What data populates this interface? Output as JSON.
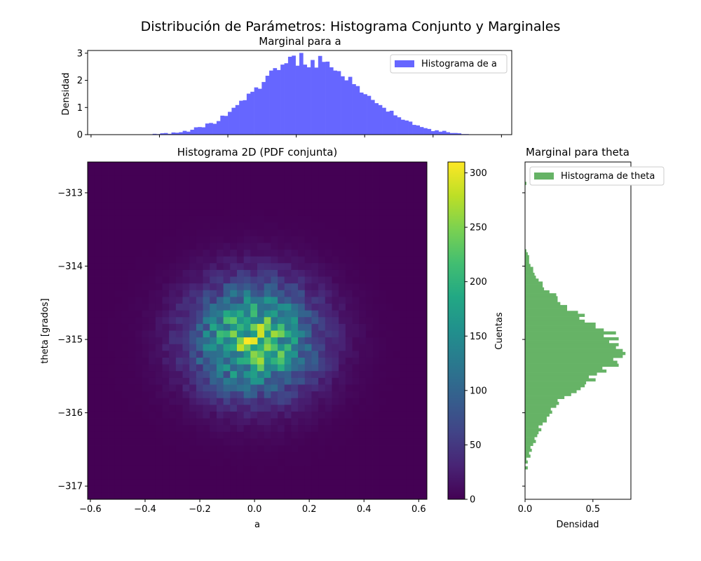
{
  "figure": {
    "suptitle": "Distribución de Parámetros: Histograma Conjunto y Marginales"
  },
  "chart_data": [
    {
      "type": "histogram",
      "title": "Marginal para a",
      "xlabel": "",
      "ylabel": "Densidad",
      "xlim": [
        -0.61,
        0.63
      ],
      "ylim": [
        0,
        3.1
      ],
      "yticks": [
        0,
        1,
        2,
        3
      ],
      "legend": {
        "label": "Histograma de a",
        "position": "top-right"
      },
      "color": "#6666ff",
      "bin_start": -0.42,
      "bin_width": 0.011,
      "densities": [
        0.03,
        0.02,
        0.05,
        0.06,
        0.03,
        0.08,
        0.07,
        0.09,
        0.14,
        0.11,
        0.18,
        0.27,
        0.28,
        0.27,
        0.41,
        0.43,
        0.4,
        0.5,
        0.7,
        0.69,
        0.84,
        0.99,
        1.09,
        1.25,
        1.27,
        1.51,
        1.58,
        1.74,
        1.69,
        1.94,
        2.17,
        2.36,
        2.45,
        2.38,
        2.58,
        2.63,
        2.87,
        2.91,
        2.54,
        3.01,
        2.58,
        2.48,
        2.75,
        2.47,
        2.9,
        2.68,
        2.69,
        2.48,
        2.36,
        2.34,
        2.15,
        2.0,
        2.13,
        1.86,
        1.79,
        1.55,
        1.49,
        1.43,
        1.28,
        1.16,
        1.09,
        0.99,
        0.85,
        0.88,
        0.71,
        0.64,
        0.55,
        0.52,
        0.48,
        0.36,
        0.34,
        0.28,
        0.24,
        0.21,
        0.13,
        0.16,
        0.11,
        0.14,
        0.09,
        0.06,
        0.06,
        0.05,
        0.02,
        0.02,
        0.01
      ]
    },
    {
      "type": "heatmap",
      "title": "Histograma 2D (PDF conjunta)",
      "xlabel": "a",
      "ylabel": "theta [grados]",
      "xlim": [
        -0.61,
        0.63
      ],
      "ylim": [
        -317.18,
        -312.58
      ],
      "xticks": [
        -0.6,
        -0.4,
        -0.2,
        0.0,
        0.2,
        0.4,
        0.6
      ],
      "yticks": [
        -317,
        -316,
        -315,
        -314,
        -313
      ],
      "colormap": "viridis",
      "grid_cols": 50,
      "grid_rows": 50,
      "center": {
        "a": 0.0,
        "theta": -315.0
      },
      "spread": {
        "a": 0.15,
        "theta": 0.5
      },
      "peak_count": 310,
      "colorbar": {
        "label": "Cuentas",
        "range": [
          0,
          310
        ],
        "ticks": [
          0,
          50,
          100,
          150,
          200,
          250,
          300
        ]
      }
    },
    {
      "type": "histogram",
      "orientation": "horizontal",
      "title": "Marginal para theta",
      "xlabel": "Densidad",
      "ylabel": "",
      "xlim": [
        0,
        0.78
      ],
      "xticks": [
        0.0,
        0.5
      ],
      "ylim": [
        -317.18,
        -312.58
      ],
      "legend": {
        "label": "Histograma de theta",
        "position": "top-right"
      },
      "color": "#66b366",
      "bin_start": -316.77,
      "bin_width": 0.04,
      "densities": [
        0.02,
        0.0,
        0.02,
        0.01,
        0.04,
        0.03,
        0.05,
        0.04,
        0.06,
        0.08,
        0.07,
        0.09,
        0.1,
        0.12,
        0.1,
        0.13,
        0.16,
        0.16,
        0.18,
        0.2,
        0.19,
        0.23,
        0.25,
        0.24,
        0.29,
        0.34,
        0.38,
        0.41,
        0.44,
        0.45,
        0.52,
        0.47,
        0.53,
        0.6,
        0.57,
        0.69,
        0.68,
        0.65,
        0.72,
        0.74,
        0.72,
        0.67,
        0.69,
        0.62,
        0.69,
        0.58,
        0.67,
        0.58,
        0.52,
        0.52,
        0.44,
        0.4,
        0.44,
        0.39,
        0.31,
        0.31,
        0.26,
        0.24,
        0.24,
        0.23,
        0.18,
        0.14,
        0.13,
        0.13,
        0.1,
        0.08,
        0.07,
        0.06,
        0.06,
        0.04,
        0.03,
        0.03,
        0.03,
        0.02,
        0.01,
        0.0,
        0.0,
        0.0,
        0.0,
        0.0,
        0.0,
        0.0,
        0.0,
        0.0,
        0.0,
        0.0,
        0.0,
        0.0,
        0.0,
        0.0,
        0.0,
        0.0,
        0.0,
        0.0,
        0.0,
        0.0,
        0.0,
        0.01
      ]
    }
  ]
}
